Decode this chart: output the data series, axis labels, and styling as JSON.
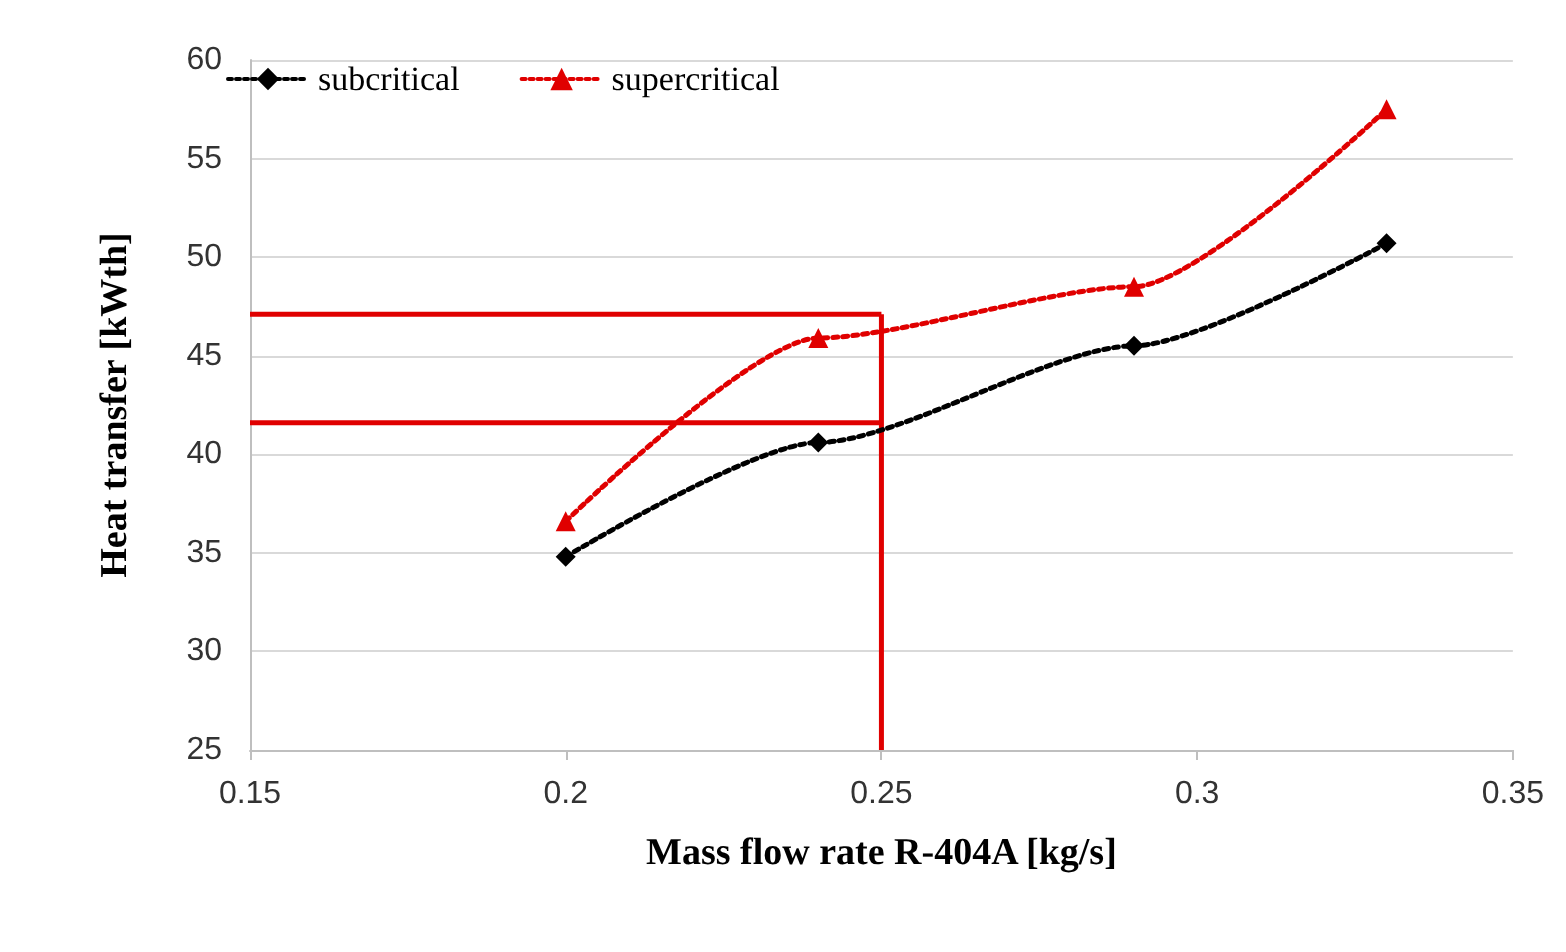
{
  "chart_data": {
    "type": "line",
    "xlabel": "Mass flow rate R-404A [kg/s]",
    "ylabel": "Heat transfer [kWth]",
    "x": [
      0.2,
      0.24,
      0.29,
      0.33
    ],
    "series": [
      {
        "name": "subcritical",
        "color": "#000000",
        "marker": "diamond",
        "line_style": "dotted",
        "values": [
          34.8,
          40.6,
          45.5,
          50.7
        ]
      },
      {
        "name": "supercritical",
        "color": "#e00000",
        "marker": "triangle",
        "line_style": "dotted",
        "values": [
          36.6,
          45.9,
          48.5,
          57.5
        ]
      }
    ],
    "ref_lines": [
      {
        "axis": "x",
        "value": 0.25,
        "color": "#e00000",
        "line_style": "solid"
      },
      {
        "axis": "y",
        "value": 47.1,
        "color": "#e00000",
        "line_style": "solid"
      },
      {
        "axis": "y",
        "value": 41.6,
        "color": "#e00000",
        "line_style": "solid"
      }
    ],
    "xlim": [
      0.15,
      0.35
    ],
    "xticks": [
      0.15,
      0.2,
      0.25,
      0.3,
      0.35
    ],
    "ylim": [
      25,
      60
    ],
    "yticks": [
      25,
      30,
      35,
      40,
      45,
      50,
      55,
      60
    ],
    "grid": "y",
    "legend": "top left"
  }
}
